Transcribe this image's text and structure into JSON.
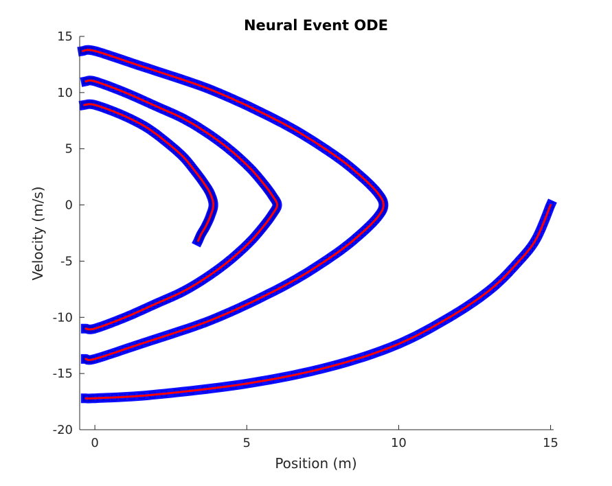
{
  "chart_data": {
    "type": "line",
    "title": "Neural Event ODE",
    "xlabel": "Position (m)",
    "ylabel": "Velocity (m/s)",
    "xlim": [
      -0.5,
      15.1
    ],
    "ylim": [
      -20,
      15
    ],
    "xticks": [
      "0",
      "5",
      "10",
      "15"
    ],
    "xtick_values": [
      0,
      5,
      10,
      15
    ],
    "yticks": [
      "15",
      "10",
      "5",
      "0",
      "-5",
      "-10",
      "-15",
      "-20"
    ],
    "ytick_values": [
      15,
      10,
      5,
      0,
      -5,
      -10,
      -15,
      -20
    ],
    "grid": false,
    "series": [
      {
        "style": "markers",
        "color": "#0000ff",
        "x": [
          15.0,
          14.53,
          13.96,
          13.03,
          11.67,
          9.88,
          7.65,
          4.99,
          1.89,
          0.0,
          -0.3
        ],
        "y": [
          0.0,
          -3.0,
          -5.0,
          -7.5,
          -10.0,
          -12.5,
          -14.45,
          -15.9,
          -16.9,
          -17.2,
          -17.2
        ]
      },
      {
        "style": "line",
        "color": "#ff0000",
        "x": [
          15.0,
          14.53,
          13.96,
          13.03,
          11.67,
          9.88,
          7.65,
          4.99,
          1.89,
          0.0,
          -0.3
        ],
        "y": [
          0.0,
          -3.0,
          -5.0,
          -7.5,
          -10.0,
          -12.5,
          -14.45,
          -15.9,
          -16.9,
          -17.2,
          -17.2
        ]
      },
      {
        "style": "markers",
        "color": "#0000ff",
        "x": [
          -0.4,
          0.0,
          1.47,
          3.27,
          4.22,
          5.35,
          6.63,
          7.9,
          8.7,
          9.3,
          9.5,
          9.3,
          8.7,
          7.9,
          6.63,
          5.35,
          4.22,
          3.27,
          1.47,
          0.0,
          -0.3
        ],
        "y": [
          13.7,
          13.7,
          12.4,
          10.8,
          9.8,
          8.4,
          6.6,
          4.4,
          2.7,
          1.1,
          0.0,
          -1.1,
          -2.7,
          -4.4,
          -6.6,
          -8.4,
          -9.8,
          -10.8,
          -12.4,
          -13.7,
          -13.7
        ]
      },
      {
        "style": "line",
        "color": "#ff0000",
        "x": [
          -0.4,
          0.0,
          1.47,
          3.27,
          4.22,
          5.35,
          6.63,
          7.9,
          8.7,
          9.3,
          9.5,
          9.3,
          8.7,
          7.9,
          6.63,
          5.35,
          4.22,
          3.27,
          1.47,
          0.0,
          -0.3
        ],
        "y": [
          13.7,
          13.7,
          12.4,
          10.8,
          9.8,
          8.4,
          6.6,
          4.4,
          2.7,
          1.1,
          0.0,
          -1.1,
          -2.7,
          -4.4,
          -6.6,
          -8.4,
          -9.8,
          -10.8,
          -12.4,
          -13.7,
          -13.7
        ]
      },
      {
        "style": "markers",
        "color": "#0000ff",
        "x": [
          -0.3,
          0.0,
          1.0,
          2.0,
          2.9,
          3.7,
          4.45,
          5.1,
          5.55,
          5.85,
          6.0,
          5.85,
          5.55,
          5.1,
          4.45,
          3.7,
          2.9,
          2.0,
          1.0,
          0.0,
          -0.3
        ],
        "y": [
          11.0,
          11.0,
          10.0,
          8.8,
          7.7,
          6.4,
          4.9,
          3.3,
          1.9,
          0.8,
          0.0,
          -0.8,
          -1.9,
          -3.3,
          -4.9,
          -6.4,
          -7.7,
          -8.8,
          -10.0,
          -11.0,
          -11.0
        ]
      },
      {
        "style": "line",
        "color": "#ff0000",
        "x": [
          -0.3,
          0.0,
          1.0,
          2.0,
          2.9,
          3.7,
          4.45,
          5.1,
          5.55,
          5.85,
          6.0,
          5.85,
          5.55,
          5.1,
          4.45,
          3.7,
          2.9,
          2.0,
          1.0,
          0.0,
          -0.3
        ],
        "y": [
          11.0,
          11.0,
          10.0,
          8.8,
          7.7,
          6.4,
          4.9,
          3.3,
          1.9,
          0.8,
          0.0,
          -0.8,
          -1.9,
          -3.3,
          -4.9,
          -6.4,
          -7.7,
          -8.8,
          -10.0,
          -11.0,
          -11.0
        ]
      },
      {
        "style": "markers",
        "color": "#0000ff",
        "x": [
          -0.35,
          0.0,
          0.9,
          1.7,
          2.35,
          2.9,
          3.3,
          3.6,
          3.8,
          3.9,
          3.8,
          3.65,
          3.5,
          3.4
        ],
        "y": [
          8.9,
          8.9,
          8.0,
          6.9,
          5.6,
          4.3,
          3.0,
          1.9,
          1.0,
          0.0,
          -1.0,
          -1.9,
          -2.6,
          -3.2
        ]
      },
      {
        "style": "line",
        "color": "#ff0000",
        "x": [
          -0.35,
          0.0,
          0.9,
          1.7,
          2.35,
          2.9,
          3.3,
          3.6,
          3.8,
          3.9,
          3.8,
          3.65,
          3.5,
          3.4
        ],
        "y": [
          8.9,
          8.9,
          8.0,
          6.9,
          5.6,
          4.3,
          3.0,
          1.9,
          1.0,
          0.0,
          -1.0,
          -1.9,
          -2.6,
          -3.2
        ]
      }
    ]
  }
}
